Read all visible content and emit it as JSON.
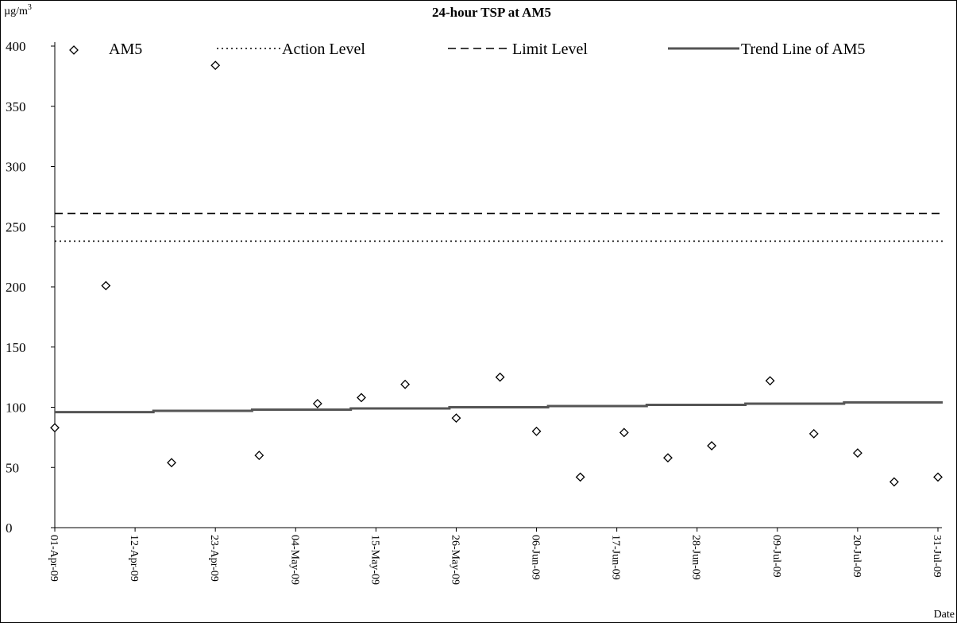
{
  "chart_data": {
    "type": "scatter",
    "title": "24-hour TSP at AM5",
    "ylabel_unit": "µg/m",
    "ylabel_unit_sup": "3",
    "xlabel": "Date",
    "ylim": [
      0,
      400
    ],
    "yticks": [
      0,
      50,
      100,
      150,
      200,
      250,
      300,
      350,
      400
    ],
    "xlim": [
      "2009-04-01",
      "2009-07-31"
    ],
    "xtick_dates": [
      "2009-04-01",
      "2009-04-12",
      "2009-04-23",
      "2009-05-04",
      "2009-05-15",
      "2009-05-26",
      "2009-06-06",
      "2009-06-17",
      "2009-06-28",
      "2009-07-09",
      "2009-07-20",
      "2009-07-31"
    ],
    "xtick_labels": [
      "01-Apr-09",
      "12-Apr-09",
      "23-Apr-09",
      "04-May-09",
      "15-May-09",
      "26-May-09",
      "06-Jun-09",
      "17-Jun-09",
      "28-Jun-09",
      "09-Jul-09",
      "20-Jul-09",
      "31-Jul-09"
    ],
    "grid": false,
    "legend_position": "top",
    "series": [
      {
        "name": "AM5",
        "kind": "markers",
        "marker": "diamond",
        "color": "#000000",
        "points": [
          {
            "x": "2009-04-01",
            "y": 83
          },
          {
            "x": "2009-04-08",
            "y": 201
          },
          {
            "x": "2009-04-17",
            "y": 54
          },
          {
            "x": "2009-04-23",
            "y": 384
          },
          {
            "x": "2009-04-29",
            "y": 60
          },
          {
            "x": "2009-05-07",
            "y": 103
          },
          {
            "x": "2009-05-13",
            "y": 108
          },
          {
            "x": "2009-05-19",
            "y": 119
          },
          {
            "x": "2009-05-26",
            "y": 91
          },
          {
            "x": "2009-06-01",
            "y": 125
          },
          {
            "x": "2009-06-06",
            "y": 80
          },
          {
            "x": "2009-06-12",
            "y": 42
          },
          {
            "x": "2009-06-18",
            "y": 79
          },
          {
            "x": "2009-06-24",
            "y": 58
          },
          {
            "x": "2009-06-30",
            "y": 68
          },
          {
            "x": "2009-07-08",
            "y": 122
          },
          {
            "x": "2009-07-14",
            "y": 78
          },
          {
            "x": "2009-07-20",
            "y": 62
          },
          {
            "x": "2009-07-25",
            "y": 38
          },
          {
            "x": "2009-07-31",
            "y": 42
          }
        ]
      },
      {
        "name": "Action Level",
        "kind": "hline",
        "style": "dotted",
        "value": 238,
        "color": "#000000"
      },
      {
        "name": "Limit Level",
        "kind": "hline",
        "style": "dashed",
        "value": 261,
        "color": "#000000"
      },
      {
        "name": "Trend Line of AM5",
        "kind": "trend",
        "style": "solid",
        "color": "#555555",
        "start": {
          "x": "2009-04-01",
          "y": 96
        },
        "end": {
          "x": "2009-07-31",
          "y": 104
        }
      }
    ]
  }
}
